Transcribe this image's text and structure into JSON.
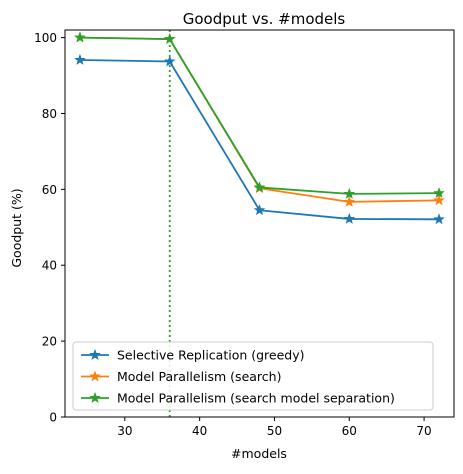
{
  "chart_data": {
    "type": "line",
    "title": "Goodput vs. #models",
    "xlabel": "#models",
    "ylabel": "Goodput (%)",
    "xlim": [
      22,
      74
    ],
    "ylim": [
      0,
      102
    ],
    "xticks": [
      30,
      40,
      50,
      60,
      70
    ],
    "yticks": [
      0,
      20,
      40,
      60,
      80,
      100
    ],
    "grid": false,
    "legend_position": "lower-left",
    "vline": {
      "x": 36,
      "style": "dotted",
      "color": "#2ca02c"
    },
    "series": [
      {
        "name": "Selective Replication (greedy)",
        "color": "#1f77b4",
        "marker": "star",
        "x": [
          24,
          36,
          48,
          60,
          72
        ],
        "y": [
          94.1,
          93.7,
          54.5,
          52.2,
          52.1
        ]
      },
      {
        "name": "Model Parallelism (search)",
        "color": "#ff7f0e",
        "marker": "star",
        "x": [
          24,
          36,
          48,
          60,
          72
        ],
        "y": [
          100,
          99.6,
          60.3,
          56.7,
          57.1
        ]
      },
      {
        "name": "Model Parallelism (search model separation)",
        "color": "#2ca02c",
        "marker": "star",
        "x": [
          24,
          36,
          48,
          60,
          72
        ],
        "y": [
          100,
          99.6,
          60.5,
          58.8,
          59.0
        ]
      }
    ]
  }
}
